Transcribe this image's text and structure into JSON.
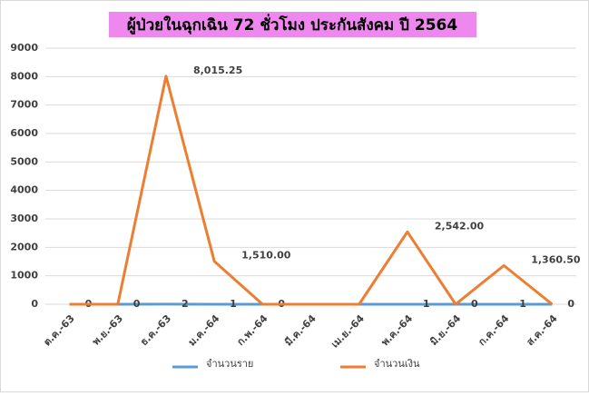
{
  "chart_data": {
    "type": "line",
    "title": "ผู้ป่วยในฉุกเฉิน 72 ชั่วโมง ประกันสังคม ปี 2564",
    "categories": [
      "ต.ค.-63",
      "พ.ย.-63",
      "ธ.ค.-63",
      "ม.ค.-64",
      "ก.พ.-64",
      "มี.ค.-64",
      "เม.ย.-64",
      "พ.ค.-64",
      "มิ.ย.-64",
      "ก.ค.-64",
      "ส.ค.-64"
    ],
    "series": [
      {
        "name": "จำนวนราย",
        "color": "#5b9bd5",
        "values": [
          0,
          0,
          2,
          1,
          0,
          0,
          0,
          1,
          0,
          1,
          0
        ],
        "value_labels": [
          "0",
          "0",
          "2",
          "1",
          "0",
          null,
          null,
          "1",
          "0",
          "1",
          "0"
        ]
      },
      {
        "name": "จำนวนเงิน",
        "color": "#ed7d31",
        "values": [
          0,
          0,
          8015.25,
          1510,
          0,
          0,
          0,
          2542,
          0,
          1360.5,
          0
        ],
        "value_labels": [
          null,
          null,
          "8,015.25",
          "1,510.00",
          null,
          null,
          null,
          "2,542.00",
          null,
          "1,360.50",
          null
        ]
      }
    ],
    "ylim": [
      0,
      9000
    ],
    "yticks": [
      0,
      1000,
      2000,
      3000,
      4000,
      5000,
      6000,
      7000,
      8000,
      9000
    ],
    "grid": true
  }
}
